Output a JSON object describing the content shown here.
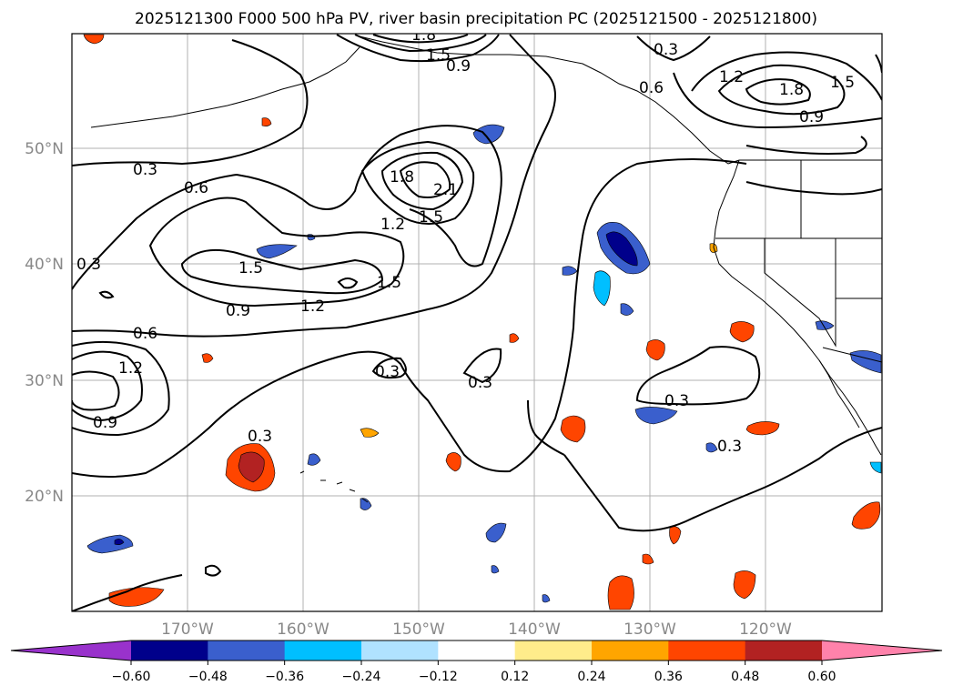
{
  "title": "2025121300 F000 500 hPa PV, river basin precipitation PC (2025121500 - 2025121800)",
  "map": {
    "lon_labels": [
      "170°W",
      "160°W",
      "150°W",
      "140°W",
      "130°W",
      "120°W"
    ],
    "lat_labels": [
      "50°N",
      "40°N",
      "30°N",
      "20°N"
    ],
    "contour_labels": [
      {
        "text": "0.3"
      },
      {
        "text": "0.6"
      },
      {
        "text": "1.5"
      },
      {
        "text": "1.2"
      },
      {
        "text": "0.9"
      },
      {
        "text": "1.8"
      },
      {
        "text": "2.1"
      },
      {
        "text": "1.5"
      },
      {
        "text": "1.2"
      },
      {
        "text": "1.5"
      },
      {
        "text": "0.3"
      },
      {
        "text": "0.6"
      },
      {
        "text": "1.2"
      },
      {
        "text": "0.9"
      },
      {
        "text": "0.3"
      },
      {
        "text": "0.3"
      },
      {
        "text": "0.3"
      },
      {
        "text": "0.3"
      },
      {
        "text": "0.3"
      },
      {
        "text": "0.3"
      },
      {
        "text": "1.2"
      },
      {
        "text": "1.8"
      },
      {
        "text": "1.5"
      },
      {
        "text": "0.9"
      },
      {
        "text": "0.6"
      },
      {
        "text": "1.8"
      },
      {
        "text": "1.5"
      },
      {
        "text": "0.9"
      }
    ]
  },
  "colorbar": {
    "ticks": [
      "−0.60",
      "−0.48",
      "−0.36",
      "−0.24",
      "−0.12",
      "0.12",
      "0.24",
      "0.36",
      "0.48",
      "0.60"
    ],
    "colors": [
      "#9932cc",
      "#00008b",
      "#3a5fcd",
      "#00bfff",
      "#b0e2ff",
      "#ffffff",
      "#ffec8b",
      "#ffa500",
      "#ff4500",
      "#b22222",
      "#ff82ab"
    ]
  }
}
